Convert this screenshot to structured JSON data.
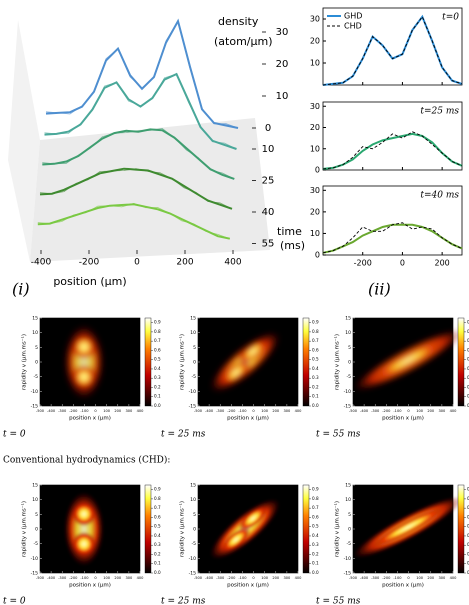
{
  "panel_i": {
    "label": "(i)",
    "zlabel": "density",
    "zunit": "(atom/μm)",
    "tlabel": "time",
    "tunit": "(ms)",
    "xlabel": "position (μm)",
    "xticks": [
      -400,
      -200,
      0,
      200,
      400
    ],
    "zticks": [
      10,
      20,
      30
    ],
    "positions": [
      -400,
      -350,
      -300,
      -250,
      -200,
      -150,
      -100,
      -50,
      0,
      50,
      100,
      150,
      200,
      250,
      300,
      350,
      400
    ],
    "traces": [
      {
        "time": 0,
        "color": "#4f8fd0",
        "values": [
          0,
          0.5,
          1,
          3,
          8,
          18,
          22,
          14,
          10,
          14,
          25,
          32,
          18,
          5,
          1,
          0.5,
          0
        ]
      },
      {
        "time": 10,
        "color": "#4aa89a",
        "values": [
          0,
          0.5,
          1.5,
          4,
          9,
          16,
          18,
          13,
          11,
          14,
          20,
          22,
          14,
          6,
          2,
          1,
          0
        ]
      },
      {
        "time": 25,
        "color": "#3f9e70",
        "values": [
          0.5,
          1,
          2,
          4,
          7,
          10,
          12,
          13,
          13,
          14,
          14,
          12,
          9,
          6,
          3,
          1.5,
          0.5
        ]
      },
      {
        "time": 40,
        "color": "#3f8a30",
        "values": [
          1,
          1.5,
          3,
          5,
          7,
          9,
          10,
          11,
          11,
          11,
          10,
          9,
          7,
          5,
          3,
          2,
          1
        ]
      },
      {
        "time": 55,
        "color": "#7ac943",
        "values": [
          1.5,
          2,
          3.5,
          5,
          6.5,
          8,
          9,
          9.5,
          10,
          9.5,
          9,
          8,
          6.5,
          5,
          3.5,
          2,
          1.5
        ]
      }
    ]
  },
  "panel_ii": {
    "label": "(ii)",
    "x": [
      -400,
      -350,
      -300,
      -250,
      -200,
      -150,
      -100,
      -50,
      0,
      50,
      100,
      150,
      200,
      250,
      300
    ],
    "xlim": [
      -400,
      300
    ],
    "xticks": [
      -200,
      0,
      200
    ],
    "plots": [
      {
        "time_label": "t=0",
        "ylim": [
          0,
          35
        ],
        "yticks": [
          10,
          20,
          30
        ],
        "series": [
          {
            "name": "GHD",
            "color": "#2b8cd6",
            "values": [
              0,
              0.5,
              1,
              4,
              12,
              22,
              18,
              12,
              14,
              25,
              31,
              20,
              8,
              2,
              0.5
            ]
          },
          {
            "name": "CHD",
            "color": "#000000",
            "values": [
              0,
              0.5,
              1,
              4,
              12,
              22,
              18,
              12,
              14,
              25,
              31,
              20,
              8,
              2,
              0.5
            ]
          }
        ]
      },
      {
        "time_label": "t=25 ms",
        "ylim": [
          0,
          32
        ],
        "yticks": [
          0,
          10,
          20,
          30
        ],
        "series": [
          {
            "color": "#2aa870",
            "values": [
              0.5,
              1,
              2.5,
              5,
              9,
              12,
              14,
              15,
              16,
              17,
              16,
              13,
              8,
              4,
              2
            ]
          },
          {
            "color": "#000000",
            "values": [
              0.5,
              1,
              2.5,
              6,
              11,
              10,
              13,
              17,
              15,
              18,
              16,
              12,
              8,
              4,
              2
            ]
          }
        ]
      },
      {
        "time_label": "t=40 ms",
        "ylim": [
          0,
          32
        ],
        "yticks": [
          0,
          10,
          20,
          30
        ],
        "series": [
          {
            "color": "#6aa830",
            "values": [
              1,
              2,
              4,
              6,
              9,
              11,
              13,
              14,
              14,
              14,
              13,
              11,
              8,
              5,
              3
            ]
          },
          {
            "color": "#000000",
            "values": [
              1,
              2,
              4,
              8,
              13,
              11,
              11,
              14,
              15,
              12,
              13,
              12,
              8,
              5,
              3
            ]
          }
        ]
      }
    ]
  },
  "heatmaps": {
    "xlabel": "position x  (μm)",
    "ylabel": "rapidity v  (μm.ms⁻¹)",
    "xlim": [
      -500,
      400
    ],
    "xticks": [
      -500,
      -400,
      -300,
      -200,
      -100,
      0,
      100,
      200,
      300,
      400
    ],
    "ylim": [
      -15,
      15
    ],
    "yticks": [
      -15,
      -10,
      -5,
      0,
      5,
      10,
      15
    ],
    "colorbar_ticks": [
      {
        "value": 0,
        "label": "0.0"
      },
      {
        "value": 0.1,
        "label": "0.1"
      },
      {
        "value": 0.2,
        "label": "0.2"
      },
      {
        "value": 0.3,
        "label": "0.3"
      },
      {
        "value": 0.4,
        "label": "0.4"
      },
      {
        "value": 0.5,
        "label": "0.5"
      },
      {
        "value": 0.6,
        "label": "0.6"
      },
      {
        "value": 0.7,
        "label": "0.7"
      },
      {
        "value": 0.8,
        "label": "0.8"
      },
      {
        "value": 0.9,
        "label": "0.9"
      }
    ],
    "colorbar_lim": [
      0,
      0.95
    ],
    "rows": [
      {
        "captions": [
          "t = 0",
          "t = 25 ms",
          "t = 55 ms"
        ]
      },
      {
        "heading": "Conventional hydrodynamics (CHD):",
        "captions": [
          "t = 0",
          "t = 25 ms",
          "t = 55 ms"
        ]
      }
    ]
  }
}
